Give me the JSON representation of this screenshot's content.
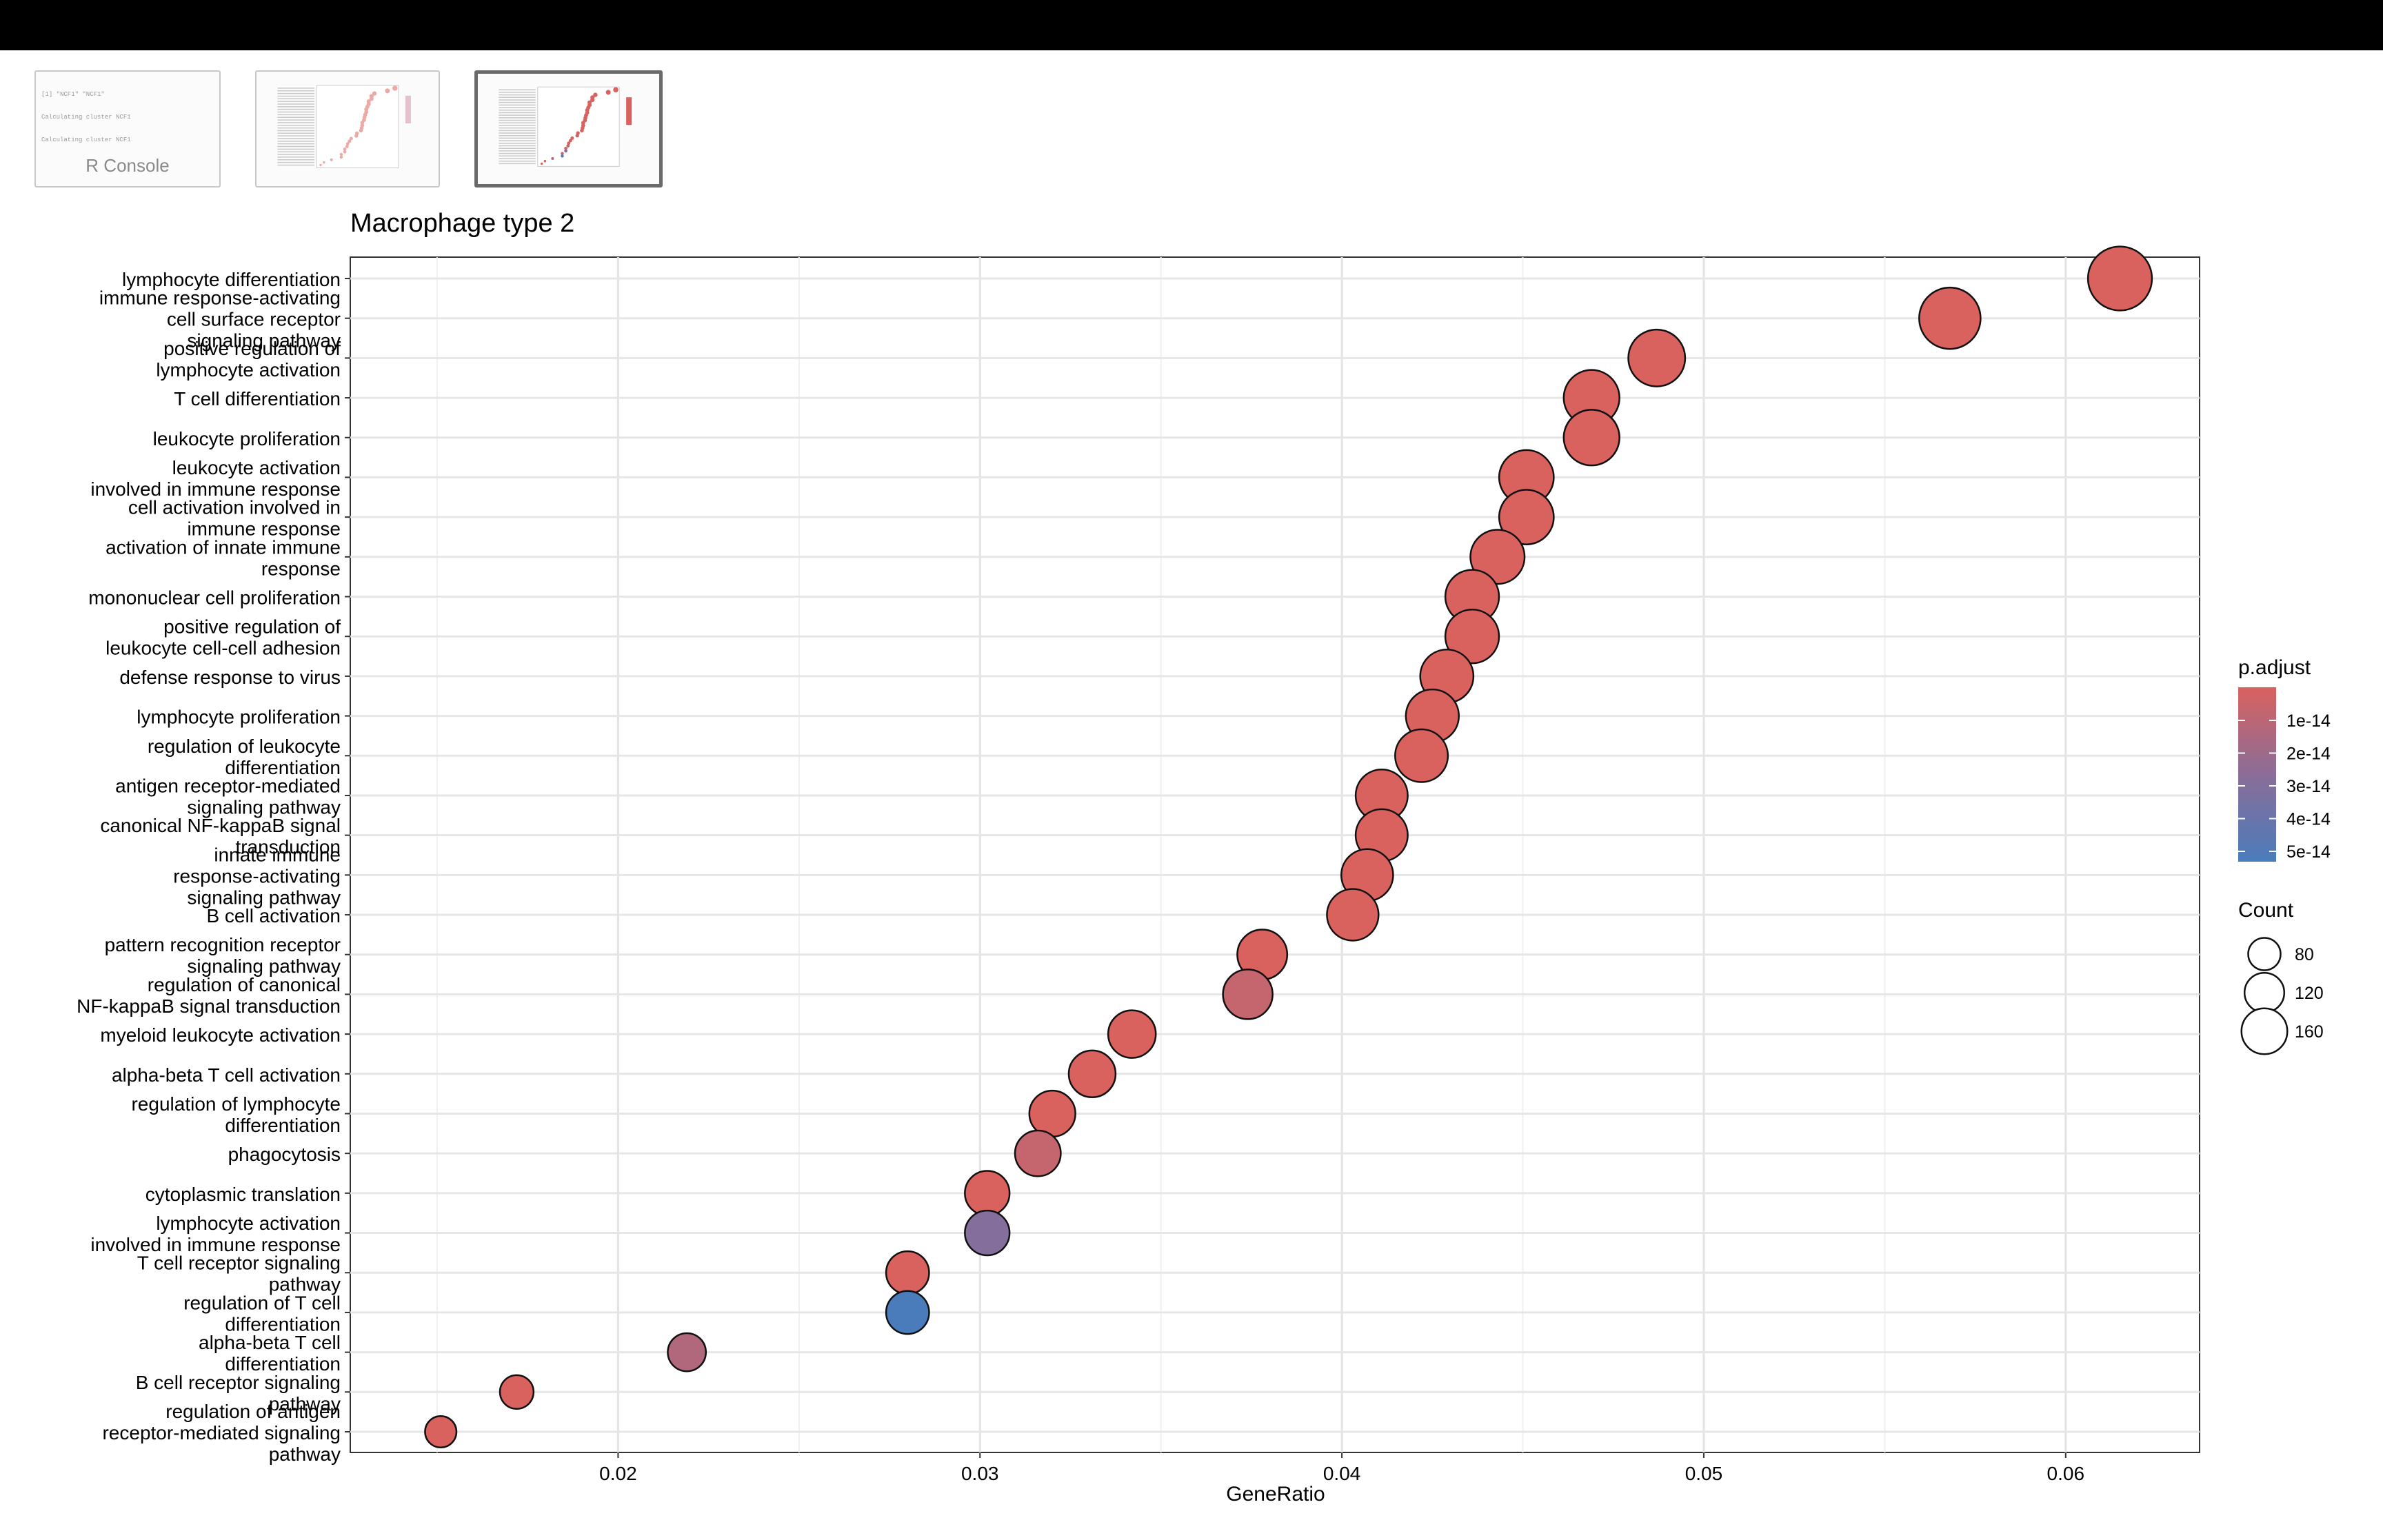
{
  "thumbnails": {
    "console_label": "R Console",
    "console_lines": [
      "[1] \"NCF1\" \"NCF1\"",
      "Calculating cluster NCF1",
      "Calculating cluster NCF1"
    ]
  },
  "legend": {
    "color_title": "p.adjust",
    "color_ticks": [
      "1e-14",
      "2e-14",
      "3e-14",
      "4e-14",
      "5e-14"
    ],
    "size_title": "Count",
    "size_values": [
      80,
      120,
      160
    ]
  },
  "colors": {
    "low": "#d9625f",
    "mid": "#8a6d98",
    "high": "#4a7cbc"
  },
  "chart_data": {
    "type": "scatter",
    "title": "Macrophage type 2",
    "xlabel": "GeneRatio",
    "ylabel": "",
    "xlim": [
      0.0126,
      0.0637
    ],
    "xticks": [
      0.02,
      0.03,
      0.04,
      0.05,
      0.06
    ],
    "xtick_labels": [
      "0.02",
      "0.03",
      "0.04",
      "0.05",
      "0.06"
    ],
    "grid": true,
    "legend_position": "right",
    "points": [
      {
        "label": [
          "lymphocyte differentiation"
        ],
        "x": 0.0615,
        "count": 166,
        "p_adjust": 1e-14
      },
      {
        "label": [
          "immune response-activating",
          "cell surface receptor",
          "signaling pathway"
        ],
        "x": 0.0568,
        "count": 153,
        "p_adjust": 1e-14
      },
      {
        "label": [
          "positive regulation of",
          "lymphocyte activation"
        ],
        "x": 0.0487,
        "count": 131,
        "p_adjust": 1e-14
      },
      {
        "label": [
          "T cell differentiation"
        ],
        "x": 0.0469,
        "count": 126,
        "p_adjust": 1e-14
      },
      {
        "label": [
          "leukocyte proliferation"
        ],
        "x": 0.0469,
        "count": 126,
        "p_adjust": 1e-14
      },
      {
        "label": [
          "leukocyte activation",
          "involved in immune response"
        ],
        "x": 0.0451,
        "count": 121,
        "p_adjust": 1e-14
      },
      {
        "label": [
          "cell activation involved in",
          "immune response"
        ],
        "x": 0.0451,
        "count": 121,
        "p_adjust": 1e-14
      },
      {
        "label": [
          "activation of innate immune",
          "response"
        ],
        "x": 0.0443,
        "count": 119,
        "p_adjust": 1e-14
      },
      {
        "label": [
          "mononuclear cell proliferation"
        ],
        "x": 0.0436,
        "count": 117,
        "p_adjust": 1e-14
      },
      {
        "label": [
          "positive regulation of",
          "leukocyte cell-cell adhesion"
        ],
        "x": 0.0436,
        "count": 117,
        "p_adjust": 1e-14
      },
      {
        "label": [
          "defense response to virus"
        ],
        "x": 0.0429,
        "count": 115,
        "p_adjust": 1e-14
      },
      {
        "label": [
          "lymphocyte proliferation"
        ],
        "x": 0.0425,
        "count": 114,
        "p_adjust": 1e-14
      },
      {
        "label": [
          "regulation of leukocyte",
          "differentiation"
        ],
        "x": 0.0422,
        "count": 113,
        "p_adjust": 1e-14
      },
      {
        "label": [
          "antigen receptor-mediated",
          "signaling pathway"
        ],
        "x": 0.0411,
        "count": 110,
        "p_adjust": 1e-14
      },
      {
        "label": [
          "canonical NF-kappaB signal",
          "transduction"
        ],
        "x": 0.0411,
        "count": 110,
        "p_adjust": 1e-14
      },
      {
        "label": [
          "innate immune",
          "response-activating",
          "signaling pathway"
        ],
        "x": 0.0407,
        "count": 109,
        "p_adjust": 1e-14
      },
      {
        "label": [
          "B cell activation"
        ],
        "x": 0.0403,
        "count": 108,
        "p_adjust": 1e-14
      },
      {
        "label": [
          "pattern recognition receptor",
          "signaling pathway"
        ],
        "x": 0.0378,
        "count": 101,
        "p_adjust": 1e-14
      },
      {
        "label": [
          "regulation of canonical",
          "NF-kappaB signal transduction"
        ],
        "x": 0.0374,
        "count": 100,
        "p_adjust": 1.5e-14
      },
      {
        "label": [
          "myeloid leukocyte activation"
        ],
        "x": 0.0342,
        "count": 92,
        "p_adjust": 1e-14
      },
      {
        "label": [
          "alpha-beta T cell activation"
        ],
        "x": 0.0331,
        "count": 89,
        "p_adjust": 1e-14
      },
      {
        "label": [
          "regulation of lymphocyte",
          "differentiation"
        ],
        "x": 0.032,
        "count": 86,
        "p_adjust": 1e-14
      },
      {
        "label": [
          "phagocytosis"
        ],
        "x": 0.0316,
        "count": 85,
        "p_adjust": 1.5e-14
      },
      {
        "label": [
          "cytoplasmic translation"
        ],
        "x": 0.0302,
        "count": 81,
        "p_adjust": 1e-14
      },
      {
        "label": [
          "lymphocyte activation",
          "involved in immune response"
        ],
        "x": 0.0302,
        "count": 81,
        "p_adjust": 3.2e-14
      },
      {
        "label": [
          "T cell receptor signaling",
          "pathway"
        ],
        "x": 0.028,
        "count": 75,
        "p_adjust": 1e-14
      },
      {
        "label": [
          "regulation of T cell",
          "differentiation"
        ],
        "x": 0.028,
        "count": 75,
        "p_adjust": 5e-14
      },
      {
        "label": [
          "alpha-beta T cell",
          "differentiation"
        ],
        "x": 0.0219,
        "count": 59,
        "p_adjust": 2e-14
      },
      {
        "label": [
          "B cell receptor signaling",
          "pathway"
        ],
        "x": 0.0172,
        "count": 46,
        "p_adjust": 1e-14
      },
      {
        "label": [
          "regulation of antigen",
          "receptor-mediated signaling",
          "pathway"
        ],
        "x": 0.0151,
        "count": 40,
        "p_adjust": 1e-14
      }
    ]
  }
}
